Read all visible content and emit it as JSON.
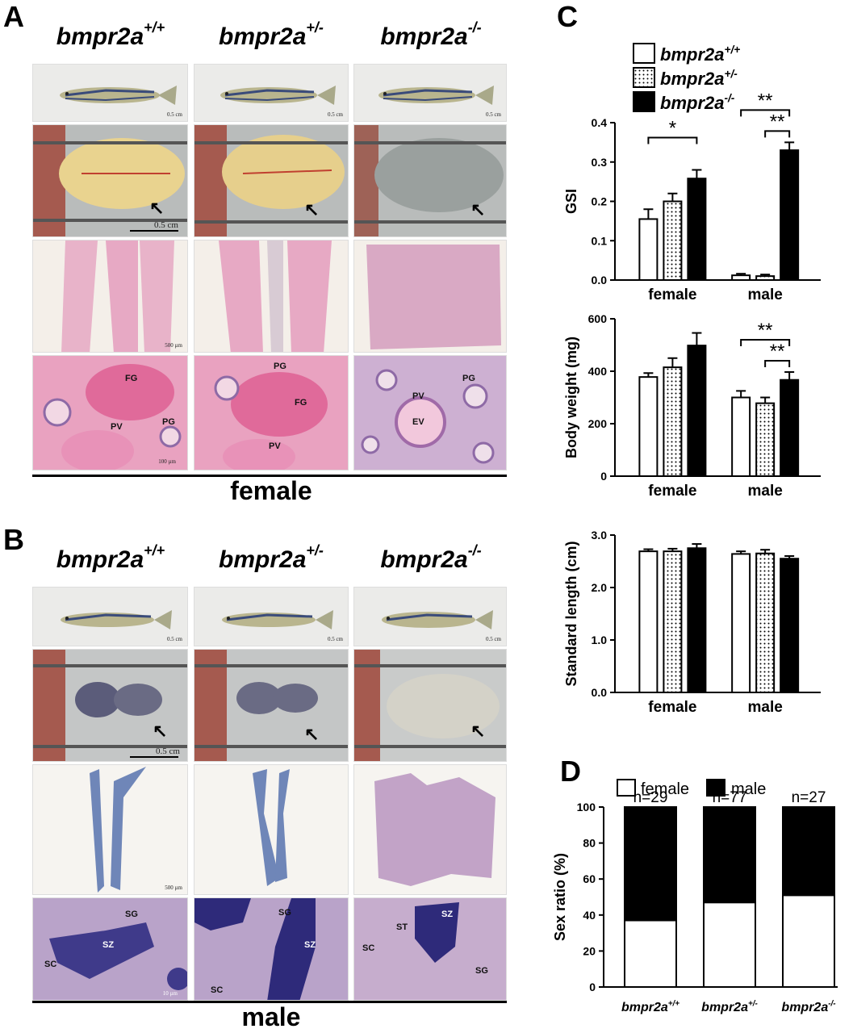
{
  "panels": {
    "a": {
      "letter": "A",
      "caption": "female",
      "genotypes": [
        {
          "base": "bmpr2a",
          "sup": "+/+"
        },
        {
          "base": "bmpr2a",
          "sup": "+/-"
        },
        {
          "base": "bmpr2a",
          "sup": "-/-"
        }
      ],
      "scales": {
        "fish": "0.5 cm",
        "dissect": "0.5 cm",
        "section": "500 µm",
        "zoom": "100 µm"
      },
      "zoom_labels": {
        "wt": [
          "FG",
          "PV",
          "PG"
        ],
        "het": [
          "PG",
          "FG",
          "PV"
        ],
        "ko": [
          "PG",
          "PV",
          "EV"
        ]
      }
    },
    "b": {
      "letter": "B",
      "caption": "male",
      "genotypes": [
        {
          "base": "bmpr2a",
          "sup": "+/+"
        },
        {
          "base": "bmpr2a",
          "sup": "+/-"
        },
        {
          "base": "bmpr2a",
          "sup": "-/-"
        }
      ],
      "scales": {
        "fish": "0.5 cm",
        "dissect": "0.5 cm",
        "section": "500 µm",
        "zoom": "10 µm"
      },
      "zoom_labels": {
        "wt": [
          "SG",
          "SZ",
          "SC"
        ],
        "het": [
          "SG",
          "SZ",
          "SC"
        ],
        "ko": [
          "SZ",
          "ST",
          "SC",
          "SG"
        ]
      }
    },
    "c": {
      "letter": "C"
    },
    "d": {
      "letter": "D"
    }
  },
  "colors": {
    "ovary": "#e9d38f",
    "ovary_ko": "#9aa09e",
    "tissue_pink": "#e7a9c4",
    "tissue_purple": "#8e6aa6",
    "testis_blue": "#5a6ea8",
    "fish_bg": "#e8e8e6",
    "dissect_bg": "#bfbfbf",
    "black": "#000000",
    "white": "#ffffff"
  },
  "chart_data": [
    {
      "type": "bar",
      "id": "gsi",
      "categories": [
        "female",
        "male"
      ],
      "series": [
        {
          "name": "bmpr2a+/+",
          "pattern": "open",
          "values": [
            0.155,
            0.012
          ],
          "errors": [
            0.025,
            0.004
          ]
        },
        {
          "name": "bmpr2a+/-",
          "pattern": "dotted",
          "values": [
            0.2,
            0.01
          ],
          "errors": [
            0.02,
            0.004
          ]
        },
        {
          "name": "bmpr2a-/-",
          "pattern": "filled",
          "values": [
            0.258,
            0.33
          ],
          "errors": [
            0.022,
            0.02
          ]
        }
      ],
      "ylabel": "GSI",
      "ylim": [
        0,
        0.4
      ],
      "yticks": [
        "0.0",
        "0.1",
        "0.2",
        "0.3",
        "0.4"
      ],
      "significance": [
        {
          "group": "female",
          "from": 0,
          "to": 2,
          "label": "*"
        },
        {
          "group": "male",
          "from": 0,
          "to": 2,
          "label": "**"
        },
        {
          "group": "male",
          "from": 1,
          "to": 2,
          "label": "**"
        }
      ],
      "legend": [
        {
          "base": "bmpr2a",
          "sup": "+/+",
          "pattern": "open"
        },
        {
          "base": "bmpr2a",
          "sup": "+/-",
          "pattern": "dotted"
        },
        {
          "base": "bmpr2a",
          "sup": "-/-",
          "pattern": "filled"
        }
      ]
    },
    {
      "type": "bar",
      "id": "body-weight",
      "categories": [
        "female",
        "male"
      ],
      "series": [
        {
          "name": "bmpr2a+/+",
          "pattern": "open",
          "values": [
            378,
            300
          ],
          "errors": [
            15,
            25
          ]
        },
        {
          "name": "bmpr2a+/-",
          "pattern": "dotted",
          "values": [
            415,
            278
          ],
          "errors": [
            35,
            22
          ]
        },
        {
          "name": "bmpr2a-/-",
          "pattern": "filled",
          "values": [
            498,
            367
          ],
          "errors": [
            48,
            30
          ]
        }
      ],
      "ylabel": "Body weight (mg)",
      "ylim": [
        0,
        600
      ],
      "yticks": [
        "0",
        "200",
        "400",
        "600"
      ],
      "significance": [
        {
          "group": "male",
          "from": 0,
          "to": 2,
          "label": "**"
        },
        {
          "group": "male",
          "from": 1,
          "to": 2,
          "label": "**"
        }
      ]
    },
    {
      "type": "bar",
      "id": "standard-length",
      "categories": [
        "female",
        "male"
      ],
      "series": [
        {
          "name": "bmpr2a+/+",
          "pattern": "open",
          "values": [
            2.69,
            2.64
          ],
          "errors": [
            0.04,
            0.05
          ]
        },
        {
          "name": "bmpr2a+/-",
          "pattern": "dotted",
          "values": [
            2.69,
            2.65
          ],
          "errors": [
            0.05,
            0.07
          ]
        },
        {
          "name": "bmpr2a-/-",
          "pattern": "filled",
          "values": [
            2.75,
            2.55
          ],
          "errors": [
            0.08,
            0.05
          ]
        }
      ],
      "ylabel": "Standard length (cm)",
      "ylim": [
        0,
        3
      ],
      "yticks": [
        "0.0",
        "1.0",
        "2.0",
        "3.0"
      ]
    },
    {
      "type": "bar",
      "id": "sex-ratio",
      "stacked": true,
      "categories": [
        "bmpr2a+/+",
        "bmpr2a+/-",
        "bmpr2a-/-"
      ],
      "category_labels": [
        {
          "base": "bmpr2a",
          "sup": "+/+"
        },
        {
          "base": "bmpr2a",
          "sup": "+/-"
        },
        {
          "base": "bmpr2a",
          "sup": "-/-"
        }
      ],
      "n_labels": [
        "n=29",
        "n=77",
        "n=27"
      ],
      "series": [
        {
          "name": "female",
          "pattern": "open",
          "values": [
            37,
            47,
            51
          ]
        },
        {
          "name": "male",
          "pattern": "filled",
          "values": [
            63,
            53,
            49
          ]
        }
      ],
      "ylabel": "Sex ratio (%)",
      "ylim": [
        0,
        100
      ],
      "yticks": [
        "0",
        "20",
        "40",
        "60",
        "80",
        "100"
      ],
      "legend": [
        "female",
        "male"
      ]
    }
  ]
}
